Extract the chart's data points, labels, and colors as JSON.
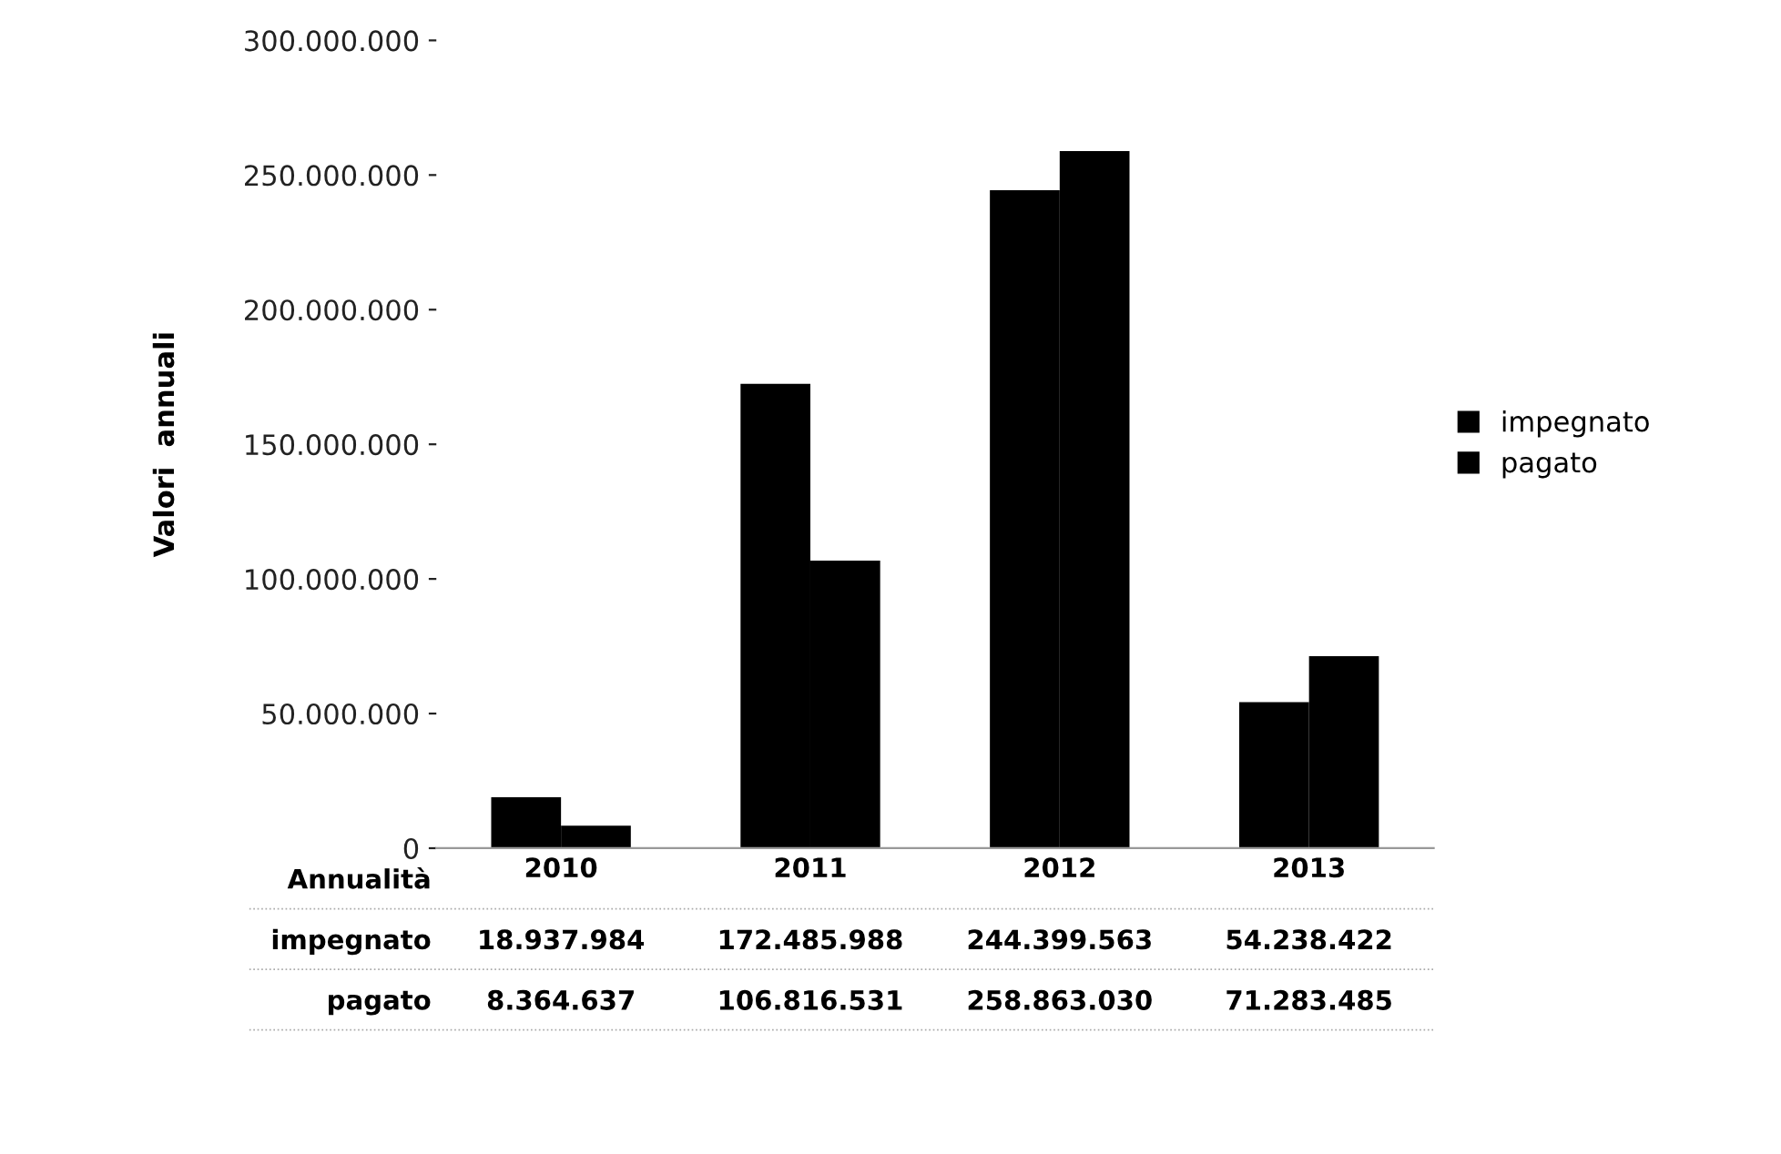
{
  "chart_data": {
    "type": "bar",
    "ylabel": "Valori  annuali",
    "xlabel": "Annualità",
    "categories": [
      "2010",
      "2011",
      "2012",
      "2013"
    ],
    "series": [
      {
        "name": "impegnato",
        "color": "#000000",
        "values": [
          18937984,
          172485988,
          244399563,
          54238422
        ],
        "value_labels": [
          "18.937.984",
          "172.485.988",
          "244.399.563",
          "54.238.422"
        ]
      },
      {
        "name": "pagato",
        "color": "#000000",
        "values": [
          8364637,
          106816531,
          258863030,
          71283485
        ],
        "value_labels": [
          "8.364.637",
          "106.816.531",
          "258.863.030",
          "71.283.485"
        ]
      }
    ],
    "ylim": [
      0,
      300000000
    ],
    "yticks": [
      {
        "value": 0,
        "label": "0"
      },
      {
        "value": 50000000,
        "label": "50.000.000"
      },
      {
        "value": 100000000,
        "label": "100.000.000"
      },
      {
        "value": 150000000,
        "label": "150.000.000"
      },
      {
        "value": 200000000,
        "label": "200.000.000"
      },
      {
        "value": 250000000,
        "label": "250.000.000"
      },
      {
        "value": 300000000,
        "label": "300.000.000"
      }
    ],
    "grid": false,
    "legend": "right"
  }
}
